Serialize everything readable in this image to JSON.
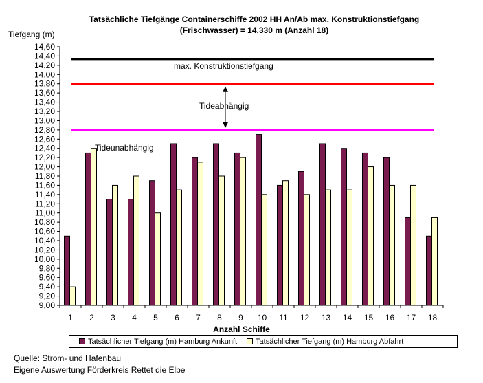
{
  "chart_data": {
    "type": "bar",
    "title_line1": "Tatsächliche Tiefgänge Containerschiffe 2002 HH An/Ab max. Konstruktionstiefgang",
    "title_line2": "(Frischwasser) = 14,330 m (Anzahl 18)",
    "ylabel": "Tiefgang (m)",
    "xlabel": "Anzahl Schiffe",
    "ylim": [
      9.0,
      14.6
    ],
    "ytick_step": 0.2,
    "categories": [
      "1",
      "2",
      "3",
      "4",
      "5",
      "6",
      "7",
      "8",
      "9",
      "10",
      "11",
      "12",
      "13",
      "14",
      "15",
      "16",
      "17",
      "18"
    ],
    "series": [
      {
        "name": "Tatsächlicher Tiefgang (m) Hamburg Ankunft",
        "color": "#7b1c4e",
        "values": [
          10.5,
          12.3,
          11.3,
          11.3,
          11.7,
          12.5,
          12.2,
          12.5,
          12.3,
          12.7,
          11.6,
          11.9,
          12.5,
          12.4,
          12.3,
          12.2,
          10.9,
          10.5
        ]
      },
      {
        "name": "Tatsächlicher Tiefgang (m) Hamburg Abfahrt",
        "color": "#ffffcc",
        "values": [
          9.4,
          12.4,
          11.6,
          11.8,
          11.0,
          11.5,
          12.1,
          11.8,
          12.2,
          11.4,
          11.7,
          11.4,
          11.5,
          11.5,
          12.0,
          11.6,
          11.6,
          10.9
        ]
      }
    ],
    "reference_lines": [
      {
        "label": "max. Konstruktionstiefgang",
        "value": 14.33,
        "color": "#000000"
      },
      {
        "label": "",
        "value": 13.8,
        "color": "#ff0000"
      },
      {
        "label": "",
        "value": 12.8,
        "color": "#ff00ff"
      }
    ],
    "annotations": {
      "tide_dependent": "Tideabhängig",
      "tide_independent": "Tideunabhängig"
    },
    "legend_position": "bottom"
  },
  "footer": {
    "source_line1": "Quelle: Strom- und Hafenbau",
    "source_line2": "Eigene Auswertung Förderkreis Rettet die Elbe"
  }
}
